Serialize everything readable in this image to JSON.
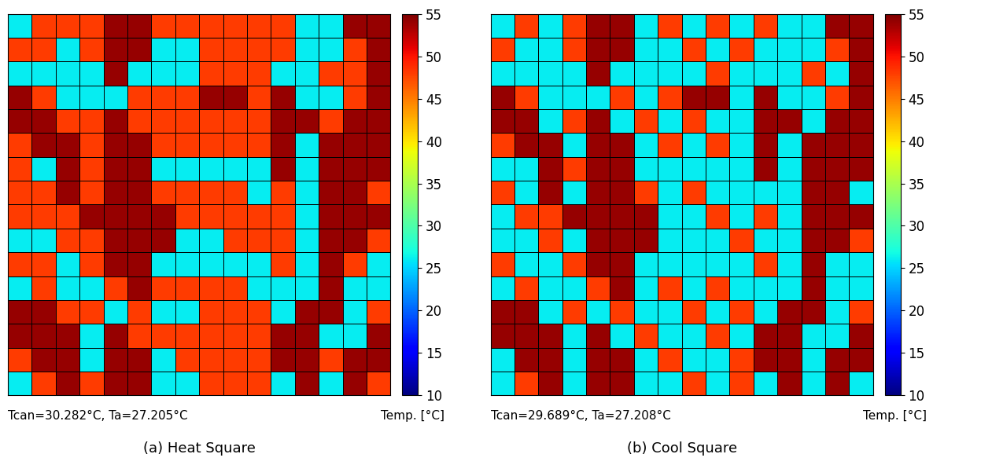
{
  "chart_data": [
    {
      "type": "heatmap",
      "title": "(a) Heat Square",
      "annotation": "Tcan=30.282°C, Ta=27.205°C",
      "colorbar_label": "Temp. [°C]",
      "color_range": [
        10,
        55
      ],
      "color_ticks": [
        10,
        15,
        20,
        25,
        30,
        35,
        40,
        45,
        50,
        55
      ],
      "tick_labels": false,
      "cells": [
        [
          26,
          48,
          48,
          48,
          54,
          54,
          48,
          48,
          48,
          48,
          48,
          48,
          26,
          26,
          54,
          54
        ],
        [
          48,
          48,
          26,
          48,
          54,
          54,
          26,
          26,
          48,
          48,
          48,
          48,
          26,
          26,
          48,
          54
        ],
        [
          26,
          26,
          26,
          26,
          54,
          26,
          26,
          26,
          48,
          48,
          48,
          26,
          26,
          48,
          48,
          54
        ],
        [
          54,
          48,
          26,
          26,
          26,
          48,
          48,
          48,
          54,
          54,
          48,
          54,
          26,
          26,
          48,
          54
        ],
        [
          54,
          54,
          48,
          48,
          54,
          48,
          48,
          48,
          48,
          48,
          48,
          54,
          54,
          48,
          54,
          54
        ],
        [
          48,
          54,
          54,
          48,
          54,
          54,
          48,
          48,
          48,
          48,
          48,
          54,
          26,
          54,
          54,
          54
        ],
        [
          48,
          26,
          54,
          48,
          54,
          54,
          26,
          26,
          26,
          26,
          26,
          54,
          26,
          54,
          54,
          54
        ],
        [
          48,
          48,
          54,
          48,
          54,
          54,
          48,
          48,
          48,
          48,
          26,
          48,
          26,
          54,
          54,
          48
        ],
        [
          48,
          48,
          48,
          54,
          54,
          54,
          54,
          48,
          48,
          48,
          48,
          48,
          26,
          54,
          54,
          54
        ],
        [
          26,
          26,
          48,
          48,
          54,
          54,
          54,
          26,
          26,
          48,
          48,
          48,
          26,
          54,
          54,
          48
        ],
        [
          48,
          48,
          26,
          48,
          54,
          54,
          26,
          26,
          26,
          26,
          26,
          48,
          26,
          54,
          48,
          26
        ],
        [
          26,
          48,
          26,
          26,
          48,
          54,
          48,
          48,
          48,
          48,
          26,
          26,
          26,
          54,
          26,
          26
        ],
        [
          54,
          54,
          48,
          48,
          26,
          48,
          26,
          26,
          48,
          48,
          48,
          26,
          54,
          54,
          26,
          48
        ],
        [
          54,
          54,
          54,
          26,
          54,
          48,
          48,
          48,
          48,
          48,
          48,
          54,
          54,
          26,
          26,
          54
        ],
        [
          48,
          54,
          54,
          26,
          54,
          54,
          26,
          48,
          48,
          48,
          48,
          54,
          54,
          48,
          54,
          54
        ],
        [
          26,
          48,
          54,
          48,
          54,
          54,
          26,
          26,
          48,
          48,
          48,
          26,
          54,
          26,
          54,
          48
        ]
      ]
    },
    {
      "type": "heatmap",
      "title": "(b) Cool Square",
      "annotation": "Tcan=29.689°C, Ta=27.208°C",
      "colorbar_label": "Temp. [°C]",
      "color_range": [
        10,
        55
      ],
      "color_ticks": [
        10,
        15,
        20,
        25,
        30,
        35,
        40,
        45,
        50,
        55
      ],
      "tick_labels": false,
      "cells": [
        [
          26,
          48,
          26,
          48,
          54,
          54,
          26,
          48,
          26,
          48,
          26,
          48,
          26,
          26,
          54,
          54
        ],
        [
          48,
          26,
          26,
          48,
          54,
          54,
          26,
          26,
          48,
          26,
          48,
          26,
          26,
          26,
          48,
          54
        ],
        [
          26,
          26,
          26,
          26,
          54,
          26,
          26,
          26,
          26,
          48,
          26,
          26,
          26,
          48,
          26,
          54
        ],
        [
          54,
          48,
          26,
          26,
          26,
          48,
          26,
          48,
          54,
          54,
          26,
          54,
          26,
          26,
          48,
          54
        ],
        [
          54,
          54,
          26,
          48,
          54,
          26,
          48,
          26,
          48,
          26,
          26,
          54,
          54,
          26,
          54,
          54
        ],
        [
          48,
          54,
          54,
          26,
          54,
          54,
          26,
          48,
          26,
          48,
          26,
          54,
          26,
          54,
          54,
          54
        ],
        [
          26,
          26,
          54,
          48,
          54,
          54,
          26,
          26,
          26,
          26,
          26,
          54,
          26,
          54,
          54,
          54
        ],
        [
          48,
          26,
          54,
          26,
          54,
          54,
          48,
          26,
          48,
          26,
          26,
          26,
          26,
          54,
          54,
          26
        ],
        [
          26,
          48,
          48,
          54,
          54,
          54,
          54,
          26,
          26,
          48,
          26,
          48,
          26,
          54,
          54,
          54
        ],
        [
          26,
          26,
          48,
          26,
          54,
          54,
          54,
          26,
          26,
          26,
          48,
          26,
          26,
          54,
          54,
          48
        ],
        [
          48,
          26,
          26,
          48,
          54,
          54,
          26,
          26,
          26,
          26,
          26,
          48,
          26,
          54,
          26,
          26
        ],
        [
          26,
          48,
          26,
          26,
          48,
          54,
          26,
          48,
          26,
          48,
          26,
          26,
          26,
          54,
          26,
          26
        ],
        [
          54,
          54,
          26,
          48,
          26,
          48,
          26,
          26,
          48,
          26,
          48,
          26,
          54,
          54,
          26,
          48
        ],
        [
          54,
          54,
          54,
          26,
          54,
          26,
          48,
          26,
          26,
          48,
          26,
          54,
          54,
          26,
          26,
          54
        ],
        [
          26,
          54,
          54,
          26,
          54,
          54,
          26,
          48,
          26,
          26,
          48,
          54,
          54,
          26,
          54,
          54
        ],
        [
          26,
          48,
          54,
          26,
          54,
          54,
          26,
          26,
          48,
          26,
          48,
          26,
          54,
          26,
          54,
          26
        ]
      ]
    }
  ]
}
